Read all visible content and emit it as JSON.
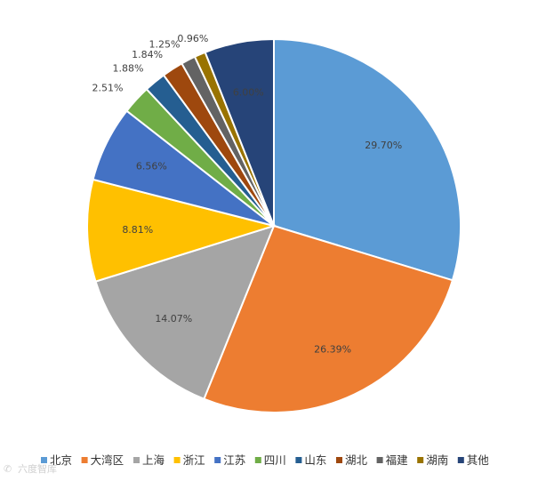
{
  "chart_data": {
    "type": "pie",
    "title": "",
    "start_angle_deg": 0,
    "direction": "clockwise",
    "legend_position": "bottom",
    "slices": [
      {
        "label": "北京",
        "value": 29.7,
        "display": "29.70%",
        "color": "#5B9BD5"
      },
      {
        "label": "大湾区",
        "value": 26.39,
        "display": "26.39%",
        "color": "#ED7D31"
      },
      {
        "label": "上海",
        "value": 14.07,
        "display": "14.07%",
        "color": "#A5A5A5"
      },
      {
        "label": "浙江",
        "value": 8.81,
        "display": "8.81%",
        "color": "#FFC000"
      },
      {
        "label": "江苏",
        "value": 6.56,
        "display": "6.56%",
        "color": "#4472C4"
      },
      {
        "label": "四川",
        "value": 2.51,
        "display": "2.51%",
        "color": "#70AD47"
      },
      {
        "label": "山东",
        "value": 1.88,
        "display": "1.88%",
        "color": "#255E91"
      },
      {
        "label": "湖北",
        "value": 1.84,
        "display": "1.84%",
        "color": "#9E480E"
      },
      {
        "label": "福建",
        "value": 1.25,
        "display": "1.25%",
        "color": "#636363"
      },
      {
        "label": "湖南",
        "value": 0.96,
        "display": "0.96%",
        "color": "#997300"
      },
      {
        "label": "其他",
        "value": 6.0,
        "display": "6.00%",
        "color": "#264478"
      }
    ]
  },
  "watermark": {
    "text": "六度智库"
  }
}
